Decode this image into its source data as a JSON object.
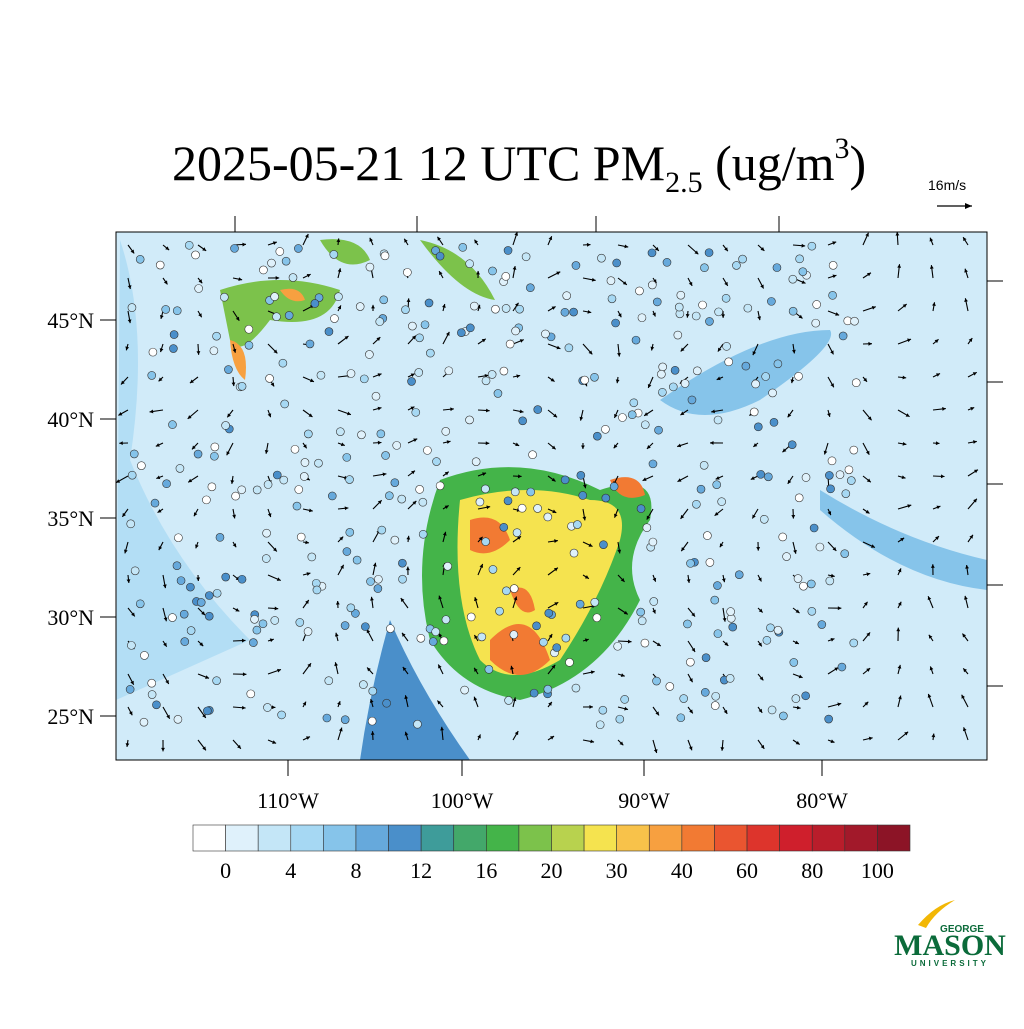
{
  "title": {
    "main": "2025-05-21 12 UTC PM",
    "subscript": "2.5",
    "unit_open": " (ug/m",
    "superscript": "3",
    "unit_close": ")"
  },
  "vector_scale": "16m/s",
  "lat_labels": [
    "45°N",
    "40°N",
    "35°N",
    "30°N",
    "25°N"
  ],
  "lon_labels": [
    "110°W",
    "100°W",
    "90°W",
    "80°W"
  ],
  "colorbar": {
    "colors": [
      "#ffffff",
      "#dff1fb",
      "#c4e6f7",
      "#a6d8f3",
      "#86c4ea",
      "#66a9dc",
      "#4a8fca",
      "#3e9c9a",
      "#43a86a",
      "#44b449",
      "#7cc24b",
      "#b8d24e",
      "#f5e34f",
      "#f8c24a",
      "#f7a040",
      "#f27a33",
      "#ea5530",
      "#dd342c",
      "#cf1f2c",
      "#b91d2b",
      "#a2192a",
      "#8c1426"
    ],
    "labels": [
      0,
      4,
      8,
      12,
      16,
      20,
      30,
      40,
      60,
      80,
      100
    ]
  },
  "logo": {
    "line1": "GEORGE",
    "line2": "MASON",
    "line3": "UNIVERSITY"
  }
}
